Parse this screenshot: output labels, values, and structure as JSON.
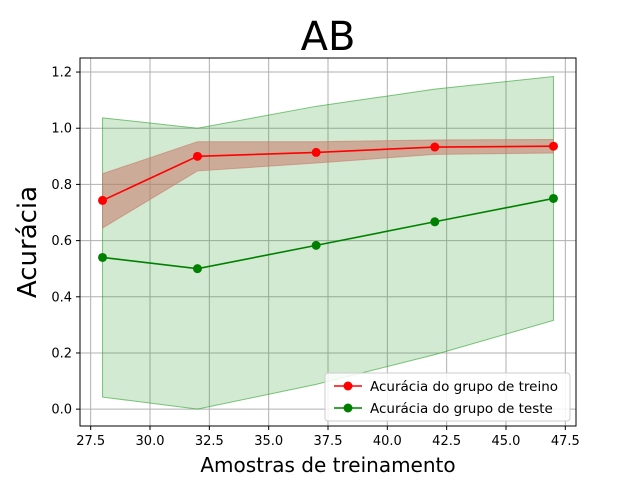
{
  "chart_data": {
    "type": "line",
    "title": "AB",
    "xlabel": "Amostras de treinamento",
    "ylabel": "Acurácia",
    "xlim": [
      27.05,
      47.95
    ],
    "ylim": [
      -0.06,
      1.25
    ],
    "xticks": [
      27.5,
      30.0,
      32.5,
      35.0,
      37.5,
      40.0,
      42.5,
      45.0,
      47.5
    ],
    "xtick_labels": [
      "27.5",
      "30.0",
      "32.5",
      "35.0",
      "37.5",
      "40.0",
      "42.5",
      "45.0",
      "47.5"
    ],
    "yticks": [
      0.0,
      0.2,
      0.4,
      0.6,
      0.8,
      1.0,
      1.2
    ],
    "ytick_labels": [
      "0.0",
      "0.2",
      "0.4",
      "0.6",
      "0.8",
      "1.0",
      "1.2"
    ],
    "grid": true,
    "legend_position": "lower-right",
    "x": [
      28,
      32,
      37,
      42,
      47
    ],
    "series": [
      {
        "name": "Acurácia do grupo de treino",
        "color": "#ff0000",
        "values": [
          0.743,
          0.9,
          0.914,
          0.933,
          0.936
        ],
        "band_lower": [
          0.645,
          0.848,
          0.876,
          0.907,
          0.912
        ],
        "band_upper": [
          0.838,
          0.952,
          0.952,
          0.958,
          0.96
        ],
        "band_color": "#c8786a"
      },
      {
        "name": "Acurácia do grupo de teste",
        "color": "#008000",
        "values": [
          0.54,
          0.5,
          0.583,
          0.667,
          0.75
        ],
        "band_lower": [
          0.043,
          0.0,
          0.088,
          0.194,
          0.316
        ],
        "band_upper": [
          1.037,
          1.0,
          1.078,
          1.139,
          1.184
        ],
        "band_color": "#2ca02c"
      }
    ]
  }
}
